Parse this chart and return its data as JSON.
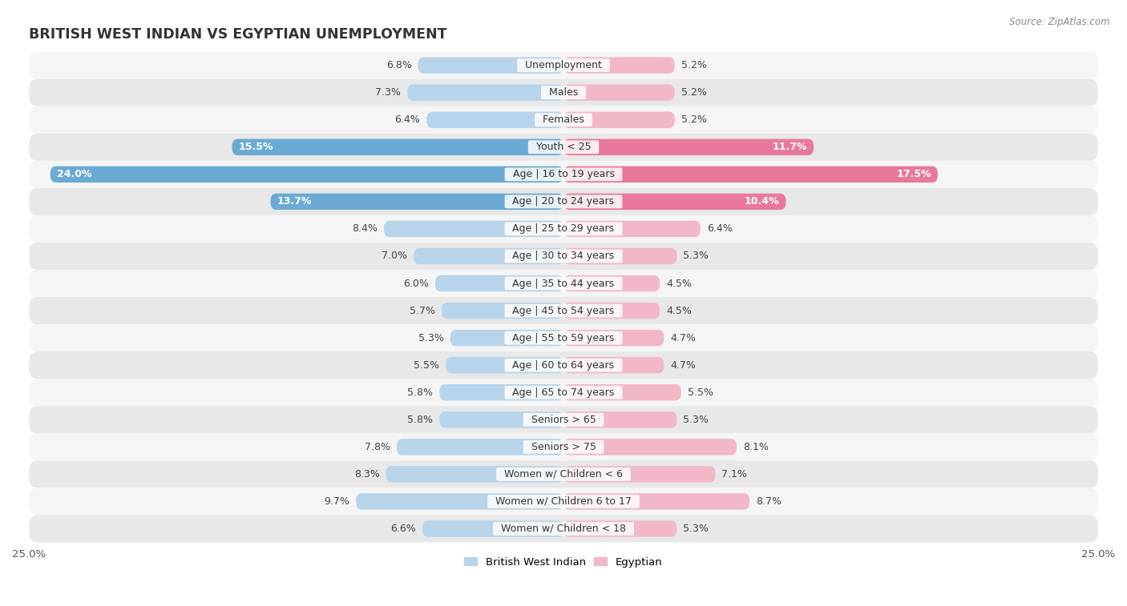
{
  "title": "BRITISH WEST INDIAN VS EGYPTIAN UNEMPLOYMENT",
  "source": "Source: ZipAtlas.com",
  "categories": [
    "Unemployment",
    "Males",
    "Females",
    "Youth < 25",
    "Age | 16 to 19 years",
    "Age | 20 to 24 years",
    "Age | 25 to 29 years",
    "Age | 30 to 34 years",
    "Age | 35 to 44 years",
    "Age | 45 to 54 years",
    "Age | 55 to 59 years",
    "Age | 60 to 64 years",
    "Age | 65 to 74 years",
    "Seniors > 65",
    "Seniors > 75",
    "Women w/ Children < 6",
    "Women w/ Children 6 to 17",
    "Women w/ Children < 18"
  ],
  "british_values": [
    6.8,
    7.3,
    6.4,
    15.5,
    24.0,
    13.7,
    8.4,
    7.0,
    6.0,
    5.7,
    5.3,
    5.5,
    5.8,
    5.8,
    7.8,
    8.3,
    9.7,
    6.6
  ],
  "egyptian_values": [
    5.2,
    5.2,
    5.2,
    11.7,
    17.5,
    10.4,
    6.4,
    5.3,
    4.5,
    4.5,
    4.7,
    4.7,
    5.5,
    5.3,
    8.1,
    7.1,
    8.7,
    5.3
  ],
  "british_color_normal": "#b8d4ea",
  "egyptian_color_normal": "#f2b8c8",
  "british_color_highlight": "#6aaad4",
  "egyptian_color_highlight": "#e8799a",
  "row_colors": [
    "#f5f5f5",
    "#e8e8e8"
  ],
  "max_value": 25.0,
  "label_fontsize": 9.0,
  "value_fontsize": 9.0,
  "title_fontsize": 12.5,
  "bar_height": 0.6,
  "highlight_threshold_british": 13.0,
  "highlight_threshold_egyptian": 10.0
}
